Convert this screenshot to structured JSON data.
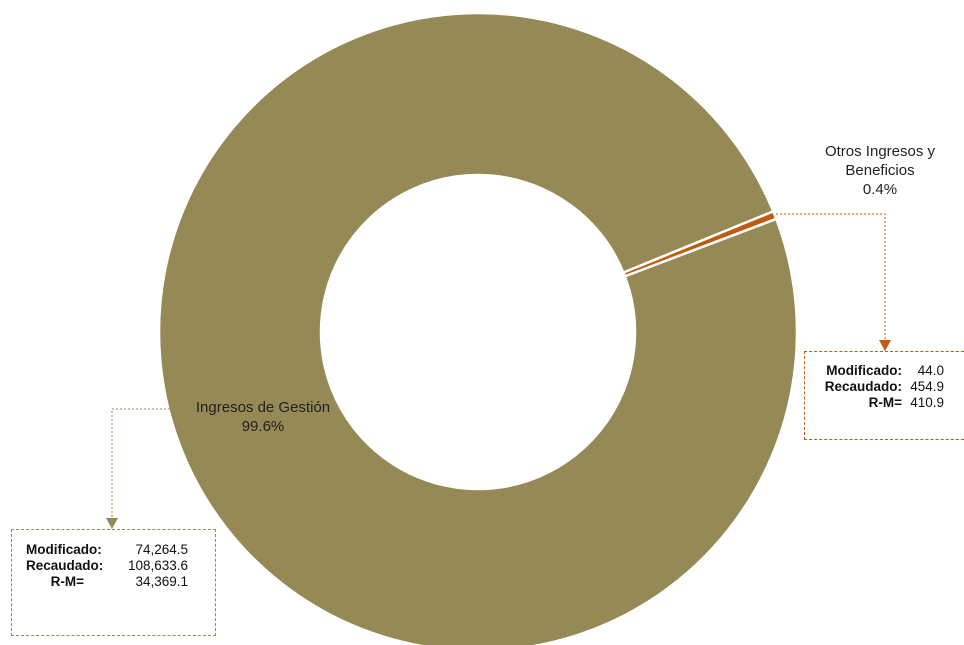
{
  "chart_data": {
    "type": "pie",
    "subtype": "donut",
    "slices": [
      {
        "label": "Ingresos de Gestión",
        "percent_label": "99.6%",
        "value": 99.6,
        "color": "#958a55",
        "details": {
          "modificado_label": "Modificado",
          "modificado": "74,264.5",
          "recaudado_label": "Recaudado",
          "recaudado": "108,633.6",
          "rm_label": "R-M=",
          "rm": "34,369.1"
        }
      },
      {
        "label_line1": "Otros Ingresos y",
        "label_line2": "Beneficios",
        "percent_label": "0.4%",
        "value": 0.4,
        "color": "#c05a10",
        "details": {
          "modificado_label": "Modificado",
          "modificado": "44.0",
          "recaudado_label": "Recaudado",
          "recaudado": "454.9",
          "rm_label": "R-M=",
          "rm": "410.9"
        }
      }
    ]
  }
}
